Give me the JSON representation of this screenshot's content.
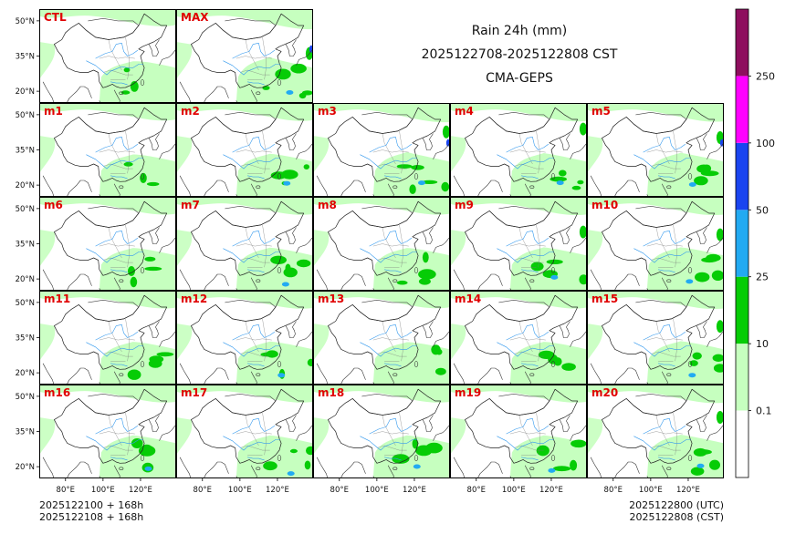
{
  "header": {
    "title": "Rain 24h (mm)",
    "period": "2025122708-2025122808 CST",
    "model": "CMA-GEPS"
  },
  "panels": [
    {
      "label": "CTL",
      "intensity": 0.25
    },
    {
      "label": "MAX",
      "intensity": 0.85
    },
    {
      "label": "m1",
      "intensity": 0.35
    },
    {
      "label": "m2",
      "intensity": 0.45
    },
    {
      "label": "m3",
      "intensity": 0.7
    },
    {
      "label": "m4",
      "intensity": 0.55
    },
    {
      "label": "m5",
      "intensity": 0.6
    },
    {
      "label": "m6",
      "intensity": 0.4
    },
    {
      "label": "m7",
      "intensity": 0.45
    },
    {
      "label": "m8",
      "intensity": 0.4
    },
    {
      "label": "m9",
      "intensity": 0.5
    },
    {
      "label": "m10",
      "intensity": 0.5
    },
    {
      "label": "m11",
      "intensity": 0.4
    },
    {
      "label": "m12",
      "intensity": 0.45
    },
    {
      "label": "m13",
      "intensity": 0.35
    },
    {
      "label": "m14",
      "intensity": 0.4
    },
    {
      "label": "m15",
      "intensity": 0.5
    },
    {
      "label": "m16",
      "intensity": 0.45
    },
    {
      "label": "m17",
      "intensity": 0.45
    },
    {
      "label": "m18",
      "intensity": 0.45
    },
    {
      "label": "m19",
      "intensity": 0.45
    },
    {
      "label": "m20",
      "intensity": 0.55
    }
  ],
  "axes": {
    "lat_labels": [
      "50°N",
      "35°N",
      "20°N"
    ],
    "lon_labels": [
      "80°E",
      "100°E",
      "120°E"
    ]
  },
  "colorbar": {
    "levels": [
      "0.1",
      "10",
      "25",
      "50",
      "100",
      "250"
    ],
    "colors": [
      "#ffffff",
      "#c6ffbf",
      "#06cc06",
      "#22aaf2",
      "#1a44f0",
      "#ff00ff",
      "#8e0e5e"
    ]
  },
  "colors": {
    "panel_label": "#e00000",
    "light_rain": "#c6ffbf",
    "moderate_rain": "#06cc06",
    "heavy_rain": "#22aaf2",
    "very_heavy_rain": "#1a44f0",
    "river": "#3399ee"
  },
  "footer": {
    "init_utc": "2025122100 + 168h",
    "init_cst": "2025122108 + 168h",
    "valid_utc": "2025122800 (UTC)",
    "valid_cst": "2025122808 (CST)"
  }
}
